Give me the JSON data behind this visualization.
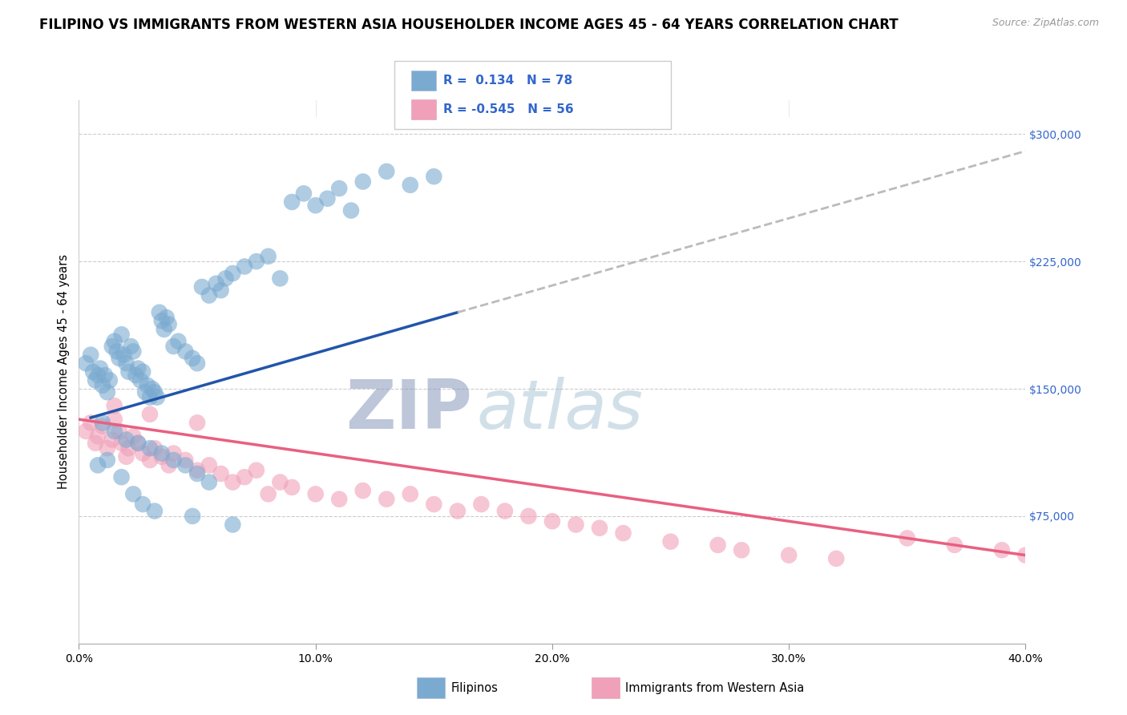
{
  "title": "FILIPINO VS IMMIGRANTS FROM WESTERN ASIA HOUSEHOLDER INCOME AGES 45 - 64 YEARS CORRELATION CHART",
  "source": "Source: ZipAtlas.com",
  "ylabel": "Householder Income Ages 45 - 64 years",
  "yticks": [
    0,
    75000,
    150000,
    225000,
    300000
  ],
  "ytick_labels": [
    "",
    "$75,000",
    "$150,000",
    "$225,000",
    "$300,000"
  ],
  "xticks": [
    0.0,
    10.0,
    20.0,
    30.0,
    40.0
  ],
  "xtick_labels": [
    "0.0%",
    "10.0%",
    "20.0%",
    "30.0%",
    "40.0%"
  ],
  "ylim": [
    0,
    320000
  ],
  "xlim": [
    0,
    40
  ],
  "blue_R": 0.134,
  "blue_N": 78,
  "pink_R": -0.545,
  "pink_N": 56,
  "blue_color": "#7AAAD0",
  "pink_color": "#F0A0B8",
  "blue_line_color": "#2255AA",
  "pink_line_color": "#E86080",
  "dashed_line_color": "#BBBBBB",
  "watermark_zip_color": "#8899BB",
  "watermark_atlas_color": "#99BBCC",
  "legend_blue_label": "Filipinos",
  "legend_pink_label": "Immigrants from Western Asia",
  "blue_line_x0": 0.5,
  "blue_line_y0": 133000,
  "blue_line_x1": 16,
  "blue_line_y1": 195000,
  "dashed_line_x0": 16,
  "dashed_line_y0": 195000,
  "dashed_line_x1": 40,
  "dashed_line_y1": 290000,
  "pink_line_x0": 0,
  "pink_line_y0": 132000,
  "pink_line_x1": 40,
  "pink_line_y1": 52000,
  "blue_scatter_x": [
    0.3,
    0.5,
    0.6,
    0.7,
    0.8,
    0.9,
    1.0,
    1.1,
    1.2,
    1.3,
    1.4,
    1.5,
    1.6,
    1.7,
    1.8,
    1.9,
    2.0,
    2.1,
    2.2,
    2.3,
    2.4,
    2.5,
    2.6,
    2.7,
    2.8,
    2.9,
    3.0,
    3.1,
    3.2,
    3.3,
    3.4,
    3.5,
    3.6,
    3.7,
    3.8,
    4.0,
    4.2,
    4.5,
    4.8,
    5.0,
    5.2,
    5.5,
    5.8,
    6.0,
    6.2,
    6.5,
    7.0,
    7.5,
    8.0,
    8.5,
    9.0,
    9.5,
    10.0,
    10.5,
    11.0,
    11.5,
    12.0,
    13.0,
    14.0,
    15.0,
    1.0,
    1.5,
    2.0,
    2.5,
    3.0,
    3.5,
    4.0,
    4.5,
    5.0,
    5.5,
    0.8,
    1.2,
    1.8,
    2.3,
    2.7,
    3.2,
    4.8,
    6.5
  ],
  "blue_scatter_y": [
    165000,
    170000,
    160000,
    155000,
    158000,
    162000,
    152000,
    158000,
    148000,
    155000,
    175000,
    178000,
    172000,
    168000,
    182000,
    170000,
    165000,
    160000,
    175000,
    172000,
    158000,
    162000,
    155000,
    160000,
    148000,
    152000,
    145000,
    150000,
    148000,
    145000,
    195000,
    190000,
    185000,
    192000,
    188000,
    175000,
    178000,
    172000,
    168000,
    165000,
    210000,
    205000,
    212000,
    208000,
    215000,
    218000,
    222000,
    225000,
    228000,
    215000,
    260000,
    265000,
    258000,
    262000,
    268000,
    255000,
    272000,
    278000,
    270000,
    275000,
    130000,
    125000,
    120000,
    118000,
    115000,
    112000,
    108000,
    105000,
    100000,
    95000,
    105000,
    108000,
    98000,
    88000,
    82000,
    78000,
    75000,
    70000
  ],
  "pink_scatter_x": [
    0.3,
    0.5,
    0.7,
    0.8,
    1.0,
    1.2,
    1.4,
    1.5,
    1.7,
    1.8,
    2.0,
    2.1,
    2.3,
    2.5,
    2.7,
    3.0,
    3.2,
    3.5,
    3.8,
    4.0,
    4.5,
    5.0,
    5.5,
    6.0,
    6.5,
    7.0,
    7.5,
    8.0,
    8.5,
    9.0,
    10.0,
    11.0,
    12.0,
    13.0,
    14.0,
    15.0,
    16.0,
    17.0,
    18.0,
    19.0,
    20.0,
    21.0,
    22.0,
    23.0,
    25.0,
    27.0,
    28.0,
    30.0,
    32.0,
    35.0,
    37.0,
    39.0,
    40.0,
    1.5,
    3.0,
    5.0
  ],
  "pink_scatter_y": [
    125000,
    130000,
    118000,
    122000,
    128000,
    115000,
    120000,
    132000,
    125000,
    118000,
    110000,
    115000,
    122000,
    118000,
    112000,
    108000,
    115000,
    110000,
    105000,
    112000,
    108000,
    102000,
    105000,
    100000,
    95000,
    98000,
    102000,
    88000,
    95000,
    92000,
    88000,
    85000,
    90000,
    85000,
    88000,
    82000,
    78000,
    82000,
    78000,
    75000,
    72000,
    70000,
    68000,
    65000,
    60000,
    58000,
    55000,
    52000,
    50000,
    62000,
    58000,
    55000,
    52000,
    140000,
    135000,
    130000
  ]
}
